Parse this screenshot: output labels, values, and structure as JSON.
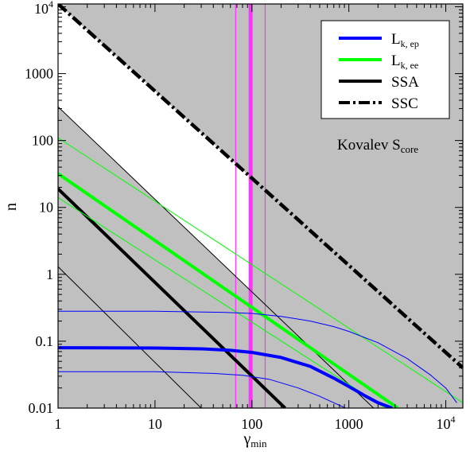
{
  "chart_data": {
    "type": "line",
    "xscale": "log",
    "yscale": "log",
    "xlim": [
      1,
      15000
    ],
    "ylim": [
      0.01,
      11000
    ],
    "xlabel": {
      "main": "γ",
      "sub": "min"
    },
    "ylabel": "n",
    "x_ticks": [
      {
        "value": 1,
        "label": "1"
      },
      {
        "value": 10,
        "label": "10"
      },
      {
        "value": 100,
        "label": "100"
      },
      {
        "value": 1000,
        "label": "1000"
      },
      {
        "value": 10000,
        "label": "10",
        "sup": "4"
      }
    ],
    "y_ticks": [
      {
        "value": 0.01,
        "label": "0.01"
      },
      {
        "value": 0.1,
        "label": "0.1"
      },
      {
        "value": 1,
        "label": "1"
      },
      {
        "value": 10,
        "label": "10"
      },
      {
        "value": 100,
        "label": "100"
      },
      {
        "value": 1000,
        "label": "1000"
      },
      {
        "value": 10000,
        "label": "10",
        "sup": "4"
      }
    ],
    "annotation": {
      "main": "Kovalev S",
      "sub": "core"
    },
    "legend": {
      "placement": "top-right",
      "entries": [
        {
          "main": "L",
          "sub": "k, ep",
          "color": "#0000ff",
          "style": "solid"
        },
        {
          "main": "L",
          "sub": "k, ee",
          "color": "#00ff00",
          "style": "solid"
        },
        {
          "main": "SSA",
          "sub": "",
          "color": "#000000",
          "style": "solid"
        },
        {
          "main": "SSC",
          "sub": "",
          "color": "#000000",
          "style": "dashed"
        }
      ]
    },
    "colors": {
      "excluded_region": "#c0c0c0",
      "allowed_region": "#ffffff",
      "ep": "#0000ff",
      "ee": "#00ff00",
      "ssa": "#000000",
      "ssc": "#000000",
      "gamma_marker": "#ff33ff"
    },
    "series": [
      {
        "name": "SSC",
        "kind": "power",
        "x": [
          1,
          15000
        ],
        "y": [
          11000,
          0.04
        ],
        "role": "main",
        "style": "dashed"
      },
      {
        "name": "SSA",
        "kind": "power",
        "x": [
          1,
          220
        ],
        "y": [
          19,
          0.01
        ],
        "role": "main",
        "style": "solid"
      },
      {
        "name": "SSA",
        "kind": "power",
        "x": [
          1,
          1800
        ],
        "y": [
          320,
          0.01
        ],
        "role": "bound",
        "style": "solid"
      },
      {
        "name": "SSA",
        "kind": "power",
        "x": [
          1,
          30
        ],
        "y": [
          1.3,
          0.01
        ],
        "role": "bound",
        "style": "solid"
      },
      {
        "name": "L k, ee",
        "kind": "power",
        "x": [
          1,
          3200
        ],
        "y": [
          32,
          0.01
        ],
        "role": "main",
        "style": "solid"
      },
      {
        "name": "L k, ee",
        "kind": "power",
        "x": [
          1,
          15000
        ],
        "y": [
          110,
          0.012
        ],
        "role": "bound",
        "style": "solid"
      },
      {
        "name": "L k, ee",
        "kind": "power",
        "x": [
          1,
          2400
        ],
        "y": [
          14,
          0.01
        ],
        "role": "bound",
        "style": "solid"
      },
      {
        "name": "L k, ep",
        "kind": "sampled",
        "x": [
          1,
          10,
          30,
          60,
          100,
          200,
          400,
          700,
          1000,
          1500,
          2000,
          2800
        ],
        "y": [
          0.08,
          0.079,
          0.077,
          0.073,
          0.068,
          0.057,
          0.042,
          0.028,
          0.021,
          0.015,
          0.012,
          0.01
        ],
        "role": "main",
        "style": "solid"
      },
      {
        "name": "L k, ep",
        "kind": "sampled",
        "x": [
          1,
          10,
          50,
          100,
          200,
          400,
          700,
          1000,
          2000,
          4000,
          7000,
          10000,
          13000
        ],
        "y": [
          0.28,
          0.28,
          0.27,
          0.26,
          0.235,
          0.2,
          0.165,
          0.14,
          0.095,
          0.055,
          0.031,
          0.02,
          0.012
        ],
        "role": "bound",
        "style": "solid"
      },
      {
        "name": "L k, ep",
        "kind": "sampled",
        "x": [
          1,
          10,
          40,
          80,
          150,
          300,
          500,
          800,
          1000
        ],
        "y": [
          0.035,
          0.035,
          0.033,
          0.031,
          0.027,
          0.02,
          0.015,
          0.011,
          0.0095
        ],
        "role": "bound",
        "style": "solid"
      }
    ],
    "vertical_lines": [
      {
        "x": 97,
        "role": "main"
      },
      {
        "x": 68,
        "role": "bound"
      },
      {
        "x": 137,
        "role": "bound"
      }
    ]
  }
}
